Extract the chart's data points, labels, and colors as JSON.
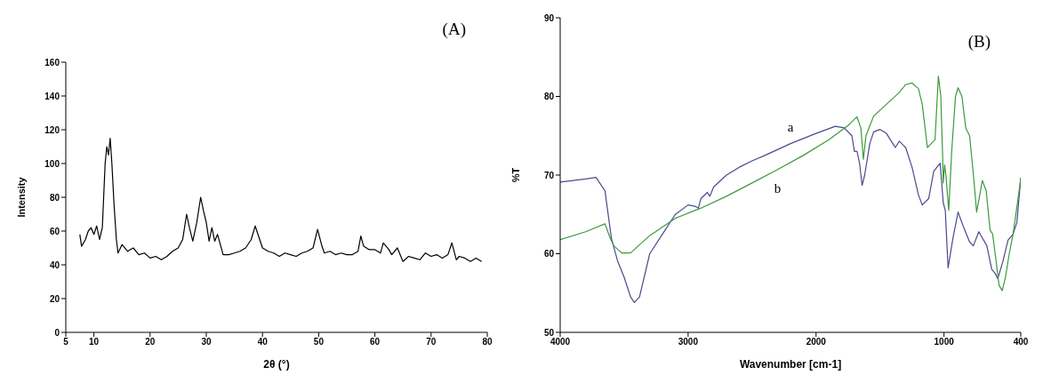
{
  "chart_data": [
    {
      "type": "line",
      "title": "(A)",
      "xlabel": "2θ (°)",
      "ylabel": "Intensity",
      "color": "#000000",
      "marker": "none",
      "xlim": [
        5,
        80
      ],
      "xticks": [
        5,
        10,
        20,
        30,
        40,
        50,
        60,
        70,
        80
      ],
      "ylim": [
        0,
        160
      ],
      "yticks": [
        0,
        20,
        40,
        60,
        80,
        100,
        120,
        140,
        160
      ],
      "x": [
        7.5,
        7.8,
        8.5,
        9,
        9.5,
        10,
        10.5,
        11,
        11.5,
        12,
        12.3,
        12.6,
        12.9,
        13.2,
        13.6,
        14,
        14.3,
        15,
        16,
        17,
        18,
        19,
        20,
        21,
        22,
        23,
        24,
        25,
        25.8,
        26.5,
        27,
        27.6,
        28.3,
        29,
        29.5,
        30,
        30.5,
        31,
        31.5,
        32,
        32.5,
        33,
        34,
        35,
        36,
        37,
        38,
        38.7,
        39.5,
        40,
        41,
        42,
        43,
        44,
        45,
        46,
        47,
        48,
        49,
        49.8,
        50.5,
        51,
        52,
        53,
        54,
        55,
        56,
        57,
        57.5,
        58,
        59,
        60,
        61,
        61.5,
        62.5,
        63,
        64,
        65,
        66,
        67,
        68,
        69,
        70,
        71,
        72,
        73,
        73.7,
        74.5,
        75,
        76,
        77,
        78,
        79
      ],
      "values": [
        58,
        51,
        55,
        60,
        62,
        58,
        63,
        55,
        62,
        100,
        110,
        105,
        115,
        100,
        75,
        55,
        47,
        52,
        48,
        50,
        46,
        47,
        44,
        45,
        43,
        45,
        48,
        50,
        55,
        70,
        62,
        54,
        65,
        80,
        72,
        65,
        54,
        62,
        54,
        58,
        52,
        46,
        46,
        47,
        48,
        50,
        55,
        63,
        55,
        50,
        48,
        47,
        45,
        47,
        46,
        45,
        47,
        48,
        50,
        61,
        52,
        47,
        48,
        46,
        47,
        46,
        46,
        48,
        57,
        51,
        49,
        49,
        47,
        53,
        49,
        46,
        50,
        42,
        45,
        44,
        43,
        47,
        45,
        46,
        44,
        46,
        53,
        43,
        45,
        44,
        42,
        44,
        42
      ]
    },
    {
      "type": "line",
      "title": "(B)",
      "xlabel": "Wavenumber [cm-1]",
      "ylabel": "%T",
      "marker": "none",
      "xlim": [
        4000,
        400
      ],
      "xticks": [
        4000,
        3000,
        2000,
        1000,
        400
      ],
      "ylim": [
        50,
        90
      ],
      "yticks": [
        50,
        60,
        70,
        80,
        90
      ],
      "series": [
        {
          "name": "a",
          "color": "#4a4a8c",
          "x": [
            4000,
            3800,
            3720,
            3650,
            3600,
            3550,
            3500,
            3450,
            3420,
            3380,
            3300,
            3200,
            3100,
            3000,
            2940,
            2920,
            2900,
            2850,
            2830,
            2800,
            2700,
            2600,
            2500,
            2400,
            2200,
            2000,
            1850,
            1780,
            1720,
            1700,
            1680,
            1660,
            1640,
            1620,
            1580,
            1550,
            1500,
            1450,
            1400,
            1380,
            1350,
            1300,
            1250,
            1200,
            1170,
            1120,
            1080,
            1030,
            1006,
            990,
            968,
            930,
            890,
            850,
            800,
            771,
            728,
            665,
            627,
            600,
            580,
            540,
            500,
            460,
            430,
            400
          ],
          "values": [
            69.1,
            69.5,
            69.7,
            68,
            62,
            59,
            57,
            54.5,
            53.8,
            54.5,
            60,
            62.5,
            65,
            66.2,
            66,
            65.8,
            67,
            67.8,
            67.3,
            68.5,
            70,
            71,
            71.8,
            72.5,
            74,
            75.3,
            76.2,
            76,
            75,
            73,
            73,
            71.5,
            68.7,
            70,
            74,
            75.5,
            75.8,
            75.3,
            74,
            73.5,
            74.3,
            73.5,
            71,
            67.5,
            66.2,
            67,
            70.5,
            71.5,
            66.5,
            65.5,
            58.2,
            62,
            65.3,
            63.5,
            61.5,
            61,
            62.8,
            61,
            58,
            57.5,
            56.8,
            59,
            61.7,
            62.5,
            64,
            69.7
          ]
        },
        {
          "name": "b",
          "color": "#3c9a3c",
          "x": [
            4000,
            3800,
            3650,
            3610,
            3580,
            3520,
            3450,
            3300,
            3100,
            2900,
            2700,
            2500,
            2300,
            2100,
            1900,
            1750,
            1700,
            1680,
            1650,
            1630,
            1610,
            1550,
            1450,
            1350,
            1300,
            1250,
            1200,
            1170,
            1130,
            1100,
            1070,
            1044,
            1025,
            1010,
            1006,
            995,
            985,
            963,
            940,
            910,
            890,
            860,
            830,
            800,
            770,
            745,
            720,
            700,
            670,
            640,
            620,
            600,
            570,
            545,
            520,
            490,
            460,
            430,
            400
          ],
          "values": [
            61.8,
            62.8,
            63.8,
            62,
            61,
            60.1,
            60.1,
            62.3,
            64.5,
            65.8,
            67.3,
            69,
            70.7,
            72.5,
            74.5,
            76.3,
            77.1,
            77.4,
            76,
            72,
            75,
            77.5,
            79,
            80.5,
            81.5,
            81.7,
            81,
            79,
            73.5,
            74,
            74.5,
            82.6,
            80,
            72,
            69,
            71.3,
            70,
            65.5,
            73,
            80,
            81.1,
            80,
            76,
            75,
            70,
            65.3,
            67.5,
            69.3,
            68,
            63,
            62.5,
            60,
            56,
            55.3,
            57,
            60,
            62.5,
            66,
            69.5
          ]
        }
      ]
    }
  ]
}
